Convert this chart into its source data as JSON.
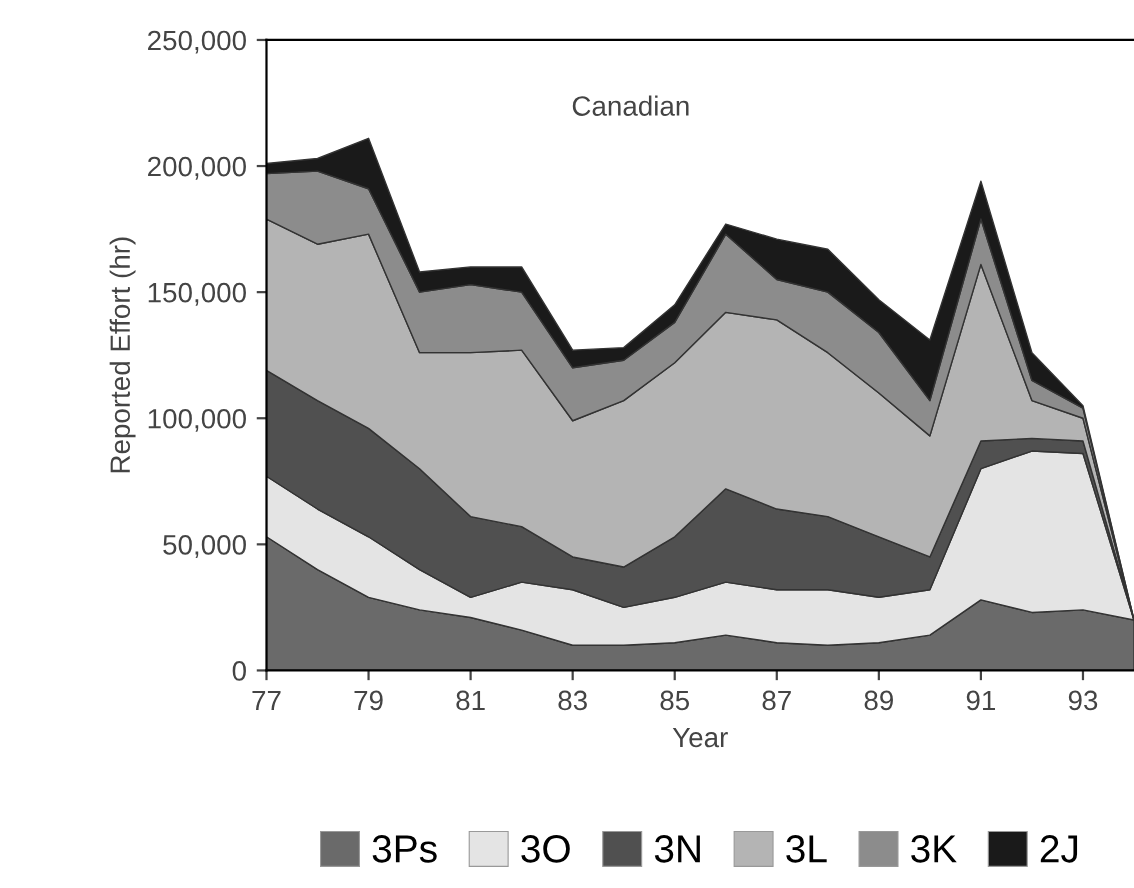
{
  "chart_data": {
    "type": "area",
    "stacked": true,
    "xlabel": "Year",
    "ylabel": "Reported Effort (hr)",
    "annotations": [
      "Canadian"
    ],
    "x": [
      77,
      78,
      79,
      80,
      81,
      82,
      83,
      84,
      85,
      86,
      87,
      88,
      89,
      90,
      91,
      92,
      93,
      94
    ],
    "series": [
      {
        "name": "3Ps",
        "color": "#6a6a6a",
        "values": [
          53000,
          40000,
          29000,
          24000,
          21000,
          16000,
          10000,
          10000,
          11000,
          14000,
          11000,
          10000,
          11000,
          14000,
          28000,
          23000,
          24000,
          20000
        ]
      },
      {
        "name": "3O",
        "color": "#e4e4e4",
        "values": [
          24000,
          24000,
          24000,
          16000,
          8000,
          19000,
          22000,
          15000,
          18000,
          21000,
          21000,
          22000,
          18000,
          18000,
          52000,
          64000,
          62000,
          0
        ]
      },
      {
        "name": "3N",
        "color": "#505050",
        "values": [
          42000,
          43000,
          43000,
          40000,
          32000,
          22000,
          13000,
          16000,
          24000,
          37000,
          32000,
          29000,
          24000,
          13000,
          11000,
          5000,
          5000,
          0
        ]
      },
      {
        "name": "3L",
        "color": "#b4b4b4",
        "values": [
          60000,
          62000,
          77000,
          46000,
          65000,
          70000,
          54000,
          66000,
          69000,
          70000,
          75000,
          65000,
          57000,
          48000,
          70000,
          15000,
          9000,
          0
        ]
      },
      {
        "name": "3K",
        "color": "#8c8c8c",
        "values": [
          18000,
          29000,
          18000,
          24000,
          27000,
          23000,
          21000,
          16000,
          16000,
          31000,
          16000,
          24000,
          24000,
          14000,
          18000,
          8000,
          4000,
          0
        ]
      },
      {
        "name": "2J",
        "color": "#1a1a1a",
        "values": [
          4000,
          5000,
          20000,
          8000,
          7000,
          10000,
          7000,
          5000,
          7000,
          4000,
          16000,
          17000,
          13000,
          24000,
          15000,
          11000,
          1000,
          0
        ]
      }
    ],
    "xlim": [
      77,
      94
    ],
    "xticks": [
      77,
      79,
      81,
      83,
      85,
      87,
      89,
      91,
      93
    ],
    "ylim": [
      0,
      250000
    ],
    "yticks": [
      {
        "value": 0,
        "label": "0"
      },
      {
        "value": 50000,
        "label": "50,000"
      },
      {
        "value": 100000,
        "label": "100,000"
      },
      {
        "value": 150000,
        "label": "150,000"
      },
      {
        "value": 200000,
        "label": "200,000"
      },
      {
        "value": 250000,
        "label": "250,000"
      }
    ],
    "grid": false,
    "legend": "bottom"
  }
}
